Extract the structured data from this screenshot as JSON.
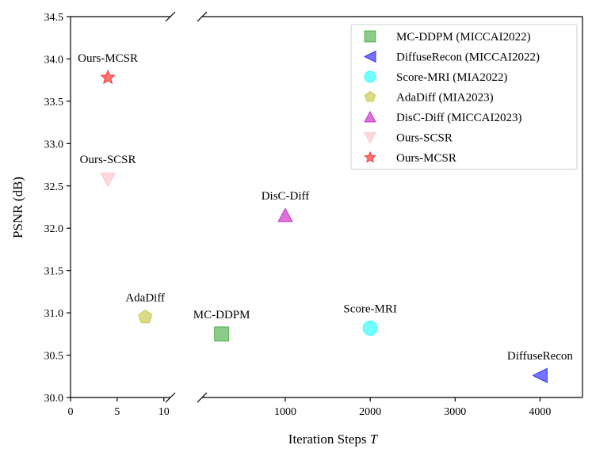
{
  "chart_data": {
    "type": "scatter",
    "title": "",
    "xlabel": "Iteration Steps",
    "xlabel_var": "T",
    "ylabel": "PSNR (dB)",
    "ylim": [
      30.0,
      34.5
    ],
    "y_ticks": [
      "30.0",
      "30.5",
      "31.0",
      "31.5",
      "32.0",
      "32.5",
      "33.0",
      "33.5",
      "34.0",
      "34.5"
    ],
    "broken_x_axis": true,
    "left_panel": {
      "xlim": [
        0,
        10.7
      ],
      "x_ticks": [
        "0",
        "5",
        "10"
      ]
    },
    "right_panel": {
      "xlim": [
        20,
        4500
      ],
      "x_ticks": [
        "1000",
        "2000",
        "3000",
        "4000"
      ]
    },
    "grid": false,
    "legend_position": "top-right",
    "series": [
      {
        "name": "MC-DDPM (MICCAI2022)",
        "label": "MC-DDPM",
        "marker": "square",
        "color": "#2ca02c",
        "panel": "right",
        "x": 250,
        "y": 30.75
      },
      {
        "name": "DiffuseRecon (MICCAI2022)",
        "label": "DiffuseRecon",
        "marker": "triangle-left",
        "color": "#0000ff",
        "panel": "right",
        "x": 4000,
        "y": 30.26
      },
      {
        "name": "Score-MRI (MIA2022)",
        "label": "Score-MRI",
        "marker": "circle",
        "color": "#00ffff",
        "panel": "right",
        "x": 2000,
        "y": 30.82
      },
      {
        "name": "AdaDiff (MIA2023)",
        "label": "AdaDiff",
        "marker": "pentagon",
        "color": "#bcbd22",
        "panel": "left",
        "x": 8,
        "y": 30.95
      },
      {
        "name": "DisC-Diff (MICCAI2023)",
        "label": "DisC-Diff",
        "marker": "triangle-up",
        "color": "#c000c0",
        "panel": "right",
        "x": 1000,
        "y": 32.15
      },
      {
        "name": "Ours-SCSR",
        "label": "Ours-SCSR",
        "marker": "triangle-down",
        "color": "#ffb6c1",
        "panel": "left",
        "x": 4,
        "y": 32.58
      },
      {
        "name": "Ours-MCSR",
        "label": "Ours-MCSR",
        "marker": "star",
        "color": "#ff0000",
        "panel": "left",
        "x": 4,
        "y": 33.78
      }
    ]
  }
}
